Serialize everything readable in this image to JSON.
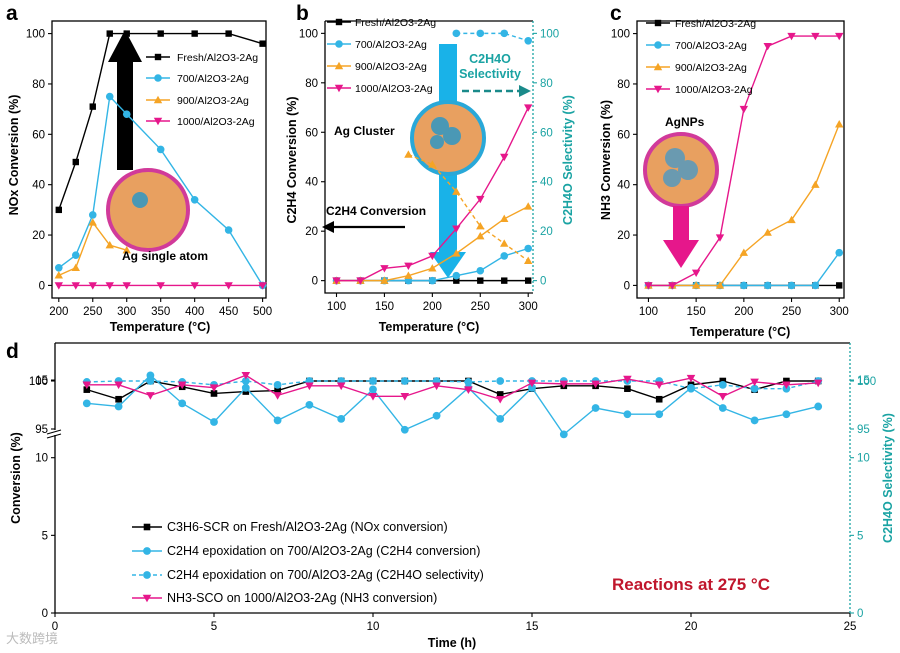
{
  "colors": {
    "fresh": "#000000",
    "c700": "#33b5e5",
    "c900": "#f5a425",
    "c1000": "#e6178b",
    "teal": "#1aa3a3",
    "reaction": "#c0162c"
  },
  "panels": {
    "a": {
      "label": "a",
      "ylabel": "NOx Conversion (%)",
      "xlabel": "Temperature (°C)",
      "annotation": "Ag single atom"
    },
    "b": {
      "label": "b",
      "ylabel": "C2H4 Conversion (%)",
      "ylabel_right": "C2H4O Selectivity (%)",
      "xlabel": "Temperature (°C)",
      "annotation_cluster": "Ag Cluster",
      "annotation_conversion": "C2H4 Conversion",
      "annotation_selectivity_line1": "C2H4O",
      "annotation_selectivity_line2": "Selectivity"
    },
    "c": {
      "label": "c",
      "ylabel": "NH3 Conversion (%)",
      "xlabel": "Temperature (°C)",
      "annotation": "AgNPs"
    },
    "d": {
      "label": "d",
      "ylabel": "Conversion (%)",
      "ylabel_right": "C2H4O Selectivity (%)",
      "xlabel": "Time (h)",
      "annotation": "Reactions at 275 °C"
    }
  },
  "legend_abc": [
    "Fresh/Al2O3-2Ag",
    "700/Al2O3-2Ag",
    "900/Al2O3-2Ag",
    "1000/Al2O3-2Ag"
  ],
  "legend_d": [
    "C3H6-SCR on Fresh/Al2O3-2Ag (NOx conversion)",
    "C2H4 epoxidation on 700/Al2O3-2Ag (C2H4 conversion)",
    "C2H4 epoxidation on 700/Al2O3-2Ag (C2H4O selectivity)",
    "NH3-SCO on 1000/Al2O3-2Ag (NH3 conversion)"
  ],
  "watermark": "大数跨境",
  "chart_data": [
    {
      "panel": "a",
      "type": "line",
      "xlabel": "Temperature (°C)",
      "ylabel": "NOx Conversion (%)",
      "xlim": [
        190,
        505
      ],
      "ylim": [
        -5,
        105
      ],
      "xticks": [
        200,
        250,
        300,
        350,
        400,
        450,
        500
      ],
      "yticks": [
        0,
        20,
        40,
        60,
        80,
        100
      ],
      "series": [
        {
          "name": "Fresh/Al2O3-2Ag",
          "x": [
            200,
            225,
            250,
            275,
            300,
            350,
            400,
            450,
            500
          ],
          "y": [
            30,
            49,
            71,
            100,
            100,
            100,
            100,
            100,
            96
          ]
        },
        {
          "name": "700/Al2O3-2Ag",
          "x": [
            200,
            225,
            250,
            275,
            300,
            350,
            400,
            450,
            500
          ],
          "y": [
            7,
            12,
            28,
            75,
            68,
            54,
            34,
            22,
            0
          ]
        },
        {
          "name": "900/Al2O3-2Ag",
          "x": [
            200,
            225,
            250,
            275,
            300
          ],
          "y": [
            4,
            7,
            25,
            16,
            14
          ]
        },
        {
          "name": "1000/Al2O3-2Ag",
          "x": [
            200,
            225,
            250,
            275,
            300,
            350,
            400,
            450,
            500
          ],
          "y": [
            0,
            0,
            0,
            0,
            0,
            0,
            0,
            0,
            0
          ]
        }
      ]
    },
    {
      "panel": "b",
      "type": "line",
      "xlabel": "Temperature (°C)",
      "ylabel": "C2H4 Conversion (%)",
      "ylabel_right": "C2H4O Selectivity (%)",
      "xlim": [
        88,
        305
      ],
      "ylim": [
        -5,
        105
      ],
      "xticks": [
        100,
        150,
        200,
        250,
        300
      ],
      "yticks": [
        0,
        20,
        40,
        60,
        80,
        100
      ],
      "yticks_right": [
        0,
        20,
        40,
        60,
        80,
        100
      ],
      "series": [
        {
          "name": "Fresh/Al2O3-2Ag",
          "x": [
            100,
            125,
            150,
            175,
            200,
            225,
            250,
            275,
            300
          ],
          "y": [
            0,
            0,
            0,
            0,
            0,
            0,
            0,
            0,
            0
          ]
        },
        {
          "name": "700/Al2O3-2Ag",
          "x": [
            100,
            125,
            150,
            175,
            200,
            225,
            250,
            275,
            300
          ],
          "y": [
            0,
            0,
            0,
            0,
            0,
            2,
            4,
            10,
            13
          ]
        },
        {
          "name": "900/Al2O3-2Ag",
          "x": [
            100,
            125,
            150,
            175,
            200,
            225,
            250,
            275,
            300
          ],
          "y": [
            0,
            0,
            0,
            2,
            5,
            11,
            18,
            25,
            30
          ]
        },
        {
          "name": "1000/Al2O3-2Ag",
          "x": [
            100,
            125,
            150,
            175,
            200,
            225,
            250,
            275,
            300
          ],
          "y": [
            0,
            0,
            5,
            6,
            10,
            21,
            33,
            50,
            70
          ]
        },
        {
          "name": "700/Al2O3-2Ag C2H4O selectivity",
          "axis": "right",
          "x": [
            225,
            250,
            275,
            300
          ],
          "y": [
            100,
            100,
            100,
            97
          ]
        },
        {
          "name": "900/Al2O3-2Ag C2H4O selectivity",
          "axis": "right",
          "x": [
            175,
            200,
            225,
            250,
            275,
            300
          ],
          "y": [
            51,
            47,
            36,
            22,
            15,
            8
          ]
        }
      ]
    },
    {
      "panel": "c",
      "type": "line",
      "xlabel": "Temperature (°C)",
      "ylabel": "NH3 Conversion (%)",
      "xlim": [
        88,
        305
      ],
      "ylim": [
        -5,
        105
      ],
      "xticks": [
        100,
        150,
        200,
        250,
        300
      ],
      "yticks": [
        0,
        20,
        40,
        60,
        80,
        100
      ],
      "series": [
        {
          "name": "Fresh/Al2O3-2Ag",
          "x": [
            100,
            125,
            150,
            175,
            200,
            225,
            250,
            275,
            300
          ],
          "y": [
            0,
            0,
            0,
            0,
            0,
            0,
            0,
            0,
            0
          ]
        },
        {
          "name": "700/Al2O3-2Ag",
          "x": [
            100,
            125,
            150,
            175,
            200,
            225,
            250,
            275,
            300
          ],
          "y": [
            0,
            0,
            0,
            0,
            0,
            0,
            0,
            0,
            13
          ]
        },
        {
          "name": "900/Al2O3-2Ag",
          "x": [
            100,
            125,
            150,
            175,
            200,
            225,
            250,
            275,
            300
          ],
          "y": [
            0,
            0,
            0,
            0,
            13,
            21,
            26,
            40,
            64
          ]
        },
        {
          "name": "1000/Al2O3-2Ag",
          "x": [
            100,
            125,
            150,
            175,
            200,
            225,
            250,
            275,
            300
          ],
          "y": [
            0,
            0,
            5,
            19,
            70,
            95,
            99,
            99,
            99
          ]
        }
      ]
    },
    {
      "panel": "d",
      "type": "line",
      "xlabel": "Time (h)",
      "ylabel": "Conversion (%)",
      "ylabel_right": "C2H4O Selectivity (%)",
      "xlim": [
        0,
        25
      ],
      "ylim": [
        0,
        100
      ],
      "y_axis_break": [
        20,
        95
      ],
      "xticks": [
        0,
        5,
        10,
        15,
        20,
        25
      ],
      "yticks": [
        0,
        5,
        10,
        15,
        95,
        100
      ],
      "yticks_right": [
        0,
        5,
        10,
        15,
        95,
        100
      ],
      "series": [
        {
          "name": "C3H6-SCR on Fresh/Al2O3-2Ag (NOx conversion)",
          "x": [
            1,
            2,
            3,
            4,
            5,
            6,
            7,
            8,
            9,
            10,
            11,
            12,
            13,
            14,
            15,
            16,
            17,
            18,
            19,
            20,
            21,
            22,
            23,
            24
          ],
          "y": [
            99.1,
            98.1,
            100,
            99.4,
            98.7,
            98.9,
            99,
            100,
            100,
            100,
            100,
            100,
            100,
            98.6,
            99.2,
            99.5,
            99.5,
            99.2,
            98.1,
            99.6,
            100,
            99.1,
            100,
            100
          ]
        },
        {
          "name": "C2H4 epoxidation on 700/Al2O3-2Ag (C2H4 conversion)",
          "x": [
            1,
            2,
            3,
            4,
            5,
            6,
            7,
            8,
            9,
            10,
            11,
            12,
            13,
            14,
            15,
            16,
            17,
            18,
            19,
            20,
            21,
            22,
            23,
            24
          ],
          "y": [
            13.5,
            13.3,
            15.3,
            13.5,
            12.3,
            14.5,
            12.4,
            13.4,
            12.5,
            14.4,
            11.8,
            12.7,
            14.5,
            12.5,
            14.5,
            11.5,
            13.2,
            12.8,
            12.8,
            14.5,
            13.2,
            12.4,
            12.8,
            13.3
          ]
        },
        {
          "name": "C2H4 epoxidation on 700/Al2O3-2Ag (C2H4O selectivity)",
          "axis": "right",
          "x": [
            1,
            2,
            3,
            4,
            5,
            6,
            7,
            8,
            9,
            10,
            11,
            12,
            13,
            14,
            15,
            16,
            17,
            18,
            19,
            20,
            21,
            22,
            23,
            24
          ],
          "y": [
            99.9,
            100,
            100,
            99.9,
            99.6,
            100,
            99.6,
            100,
            100,
            100,
            100,
            100,
            99.9,
            100,
            100,
            100,
            100,
            100,
            100,
            99.2,
            99.6,
            99.2,
            99.2,
            100
          ]
        },
        {
          "name": "NH3-SCO on 1000/Al2O3-2Ag (NH3 conversion)",
          "x": [
            1,
            2,
            3,
            4,
            5,
            6,
            7,
            8,
            9,
            10,
            11,
            12,
            13,
            14,
            15,
            16,
            17,
            18,
            19,
            20,
            21,
            22,
            23,
            24
          ],
          "y": [
            99.6,
            99.6,
            98.5,
            99.6,
            99.3,
            100.6,
            98.5,
            99.5,
            99.5,
            98.4,
            98.4,
            99.5,
            99.1,
            98.1,
            99.8,
            99.7,
            99.7,
            100.2,
            99.6,
            100.3,
            98.4,
            99.9,
            99.6,
            99.8
          ]
        }
      ]
    }
  ]
}
